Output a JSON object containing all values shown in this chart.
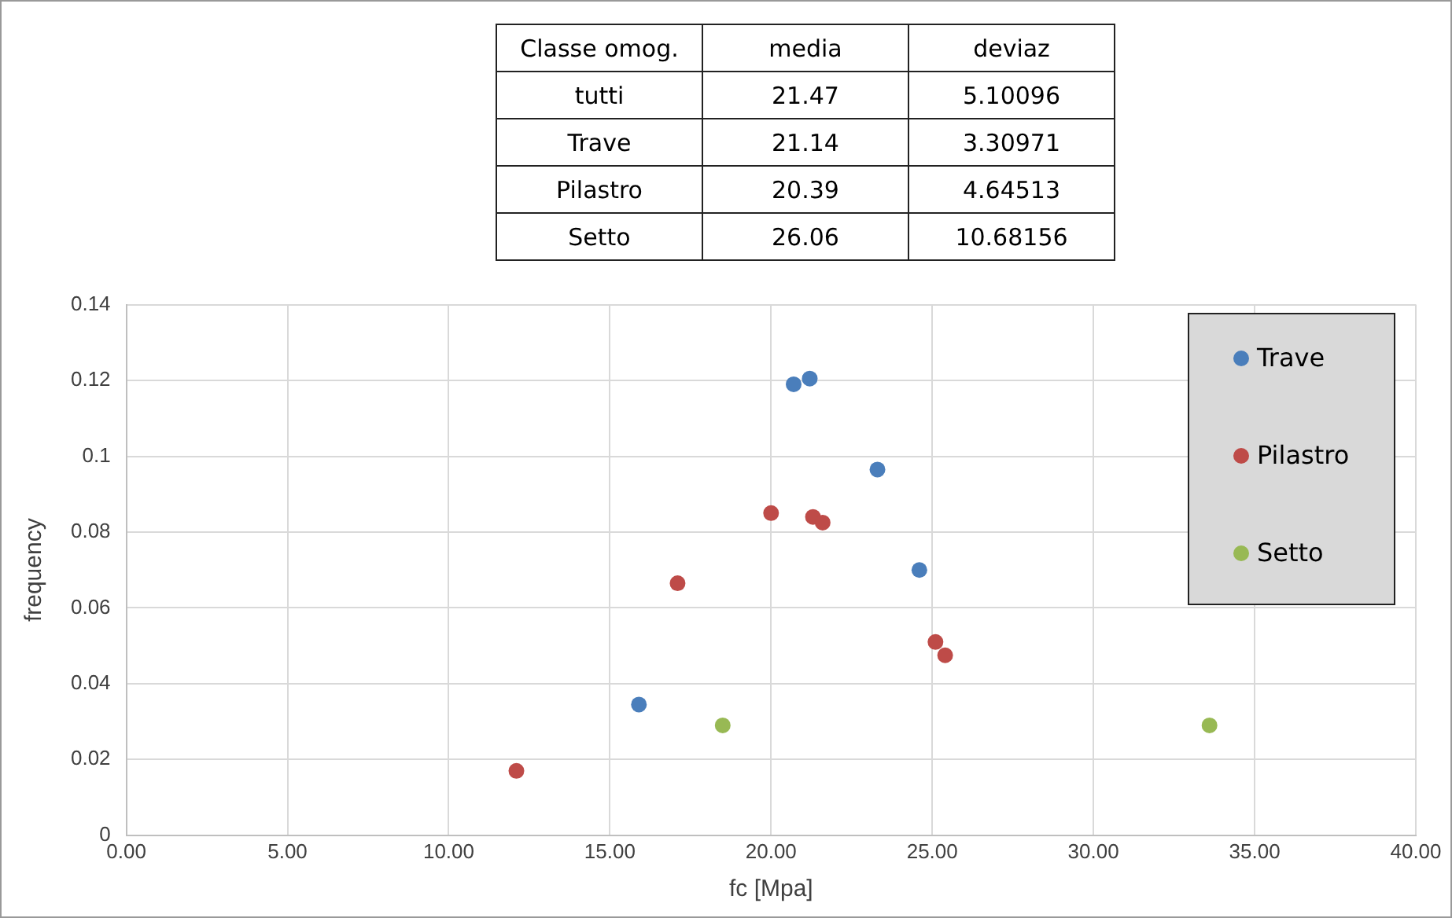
{
  "chart_data": [
    {
      "type": "other",
      "ylabel": "Classe omog.",
      "categories": [
        "media",
        "deviaz"
      ],
      "y_categories": [
        "tutti",
        "Trave",
        "Pilastro",
        "Setto"
      ],
      "annotations": [
        "21.47",
        "5.10096",
        "21.14",
        "3.30971",
        "20.39",
        "4.64513",
        "26.06",
        "10.68156"
      ]
    },
    {
      "type": "scatter",
      "xlabel": "fc [Mpa]",
      "ylabel": "frequency",
      "xlim": [
        0,
        40
      ],
      "ylim": [
        0,
        0.14
      ],
      "xticks": [
        {
          "value": 0,
          "label": "0.00"
        },
        {
          "value": 5,
          "label": "5.00"
        },
        {
          "value": 10,
          "label": "10.00"
        },
        {
          "value": 15,
          "label": "15.00"
        },
        {
          "value": 20,
          "label": "20.00"
        },
        {
          "value": 25,
          "label": "25.00"
        },
        {
          "value": 30,
          "label": "30.00"
        },
        {
          "value": 35,
          "label": "35.00"
        },
        {
          "value": 40,
          "label": "40.00"
        }
      ],
      "yticks": [
        0,
        0.02,
        0.04,
        0.06,
        0.08,
        0.1,
        0.12,
        0.14
      ],
      "grid": true,
      "legend": "top right",
      "marker": "circle",
      "series": [
        {
          "name": "Trave",
          "color": "#4a7ebb",
          "x": [
            15.9,
            20.7,
            21.2,
            23.3,
            24.6
          ],
          "values": [
            0.0345,
            0.119,
            0.1205,
            0.0965,
            0.07
          ]
        },
        {
          "name": "Pilastro",
          "color": "#be4b48",
          "x": [
            12.1,
            17.1,
            20.0,
            21.3,
            21.6,
            25.1,
            25.4
          ],
          "values": [
            0.017,
            0.0665,
            0.085,
            0.084,
            0.0825,
            0.051,
            0.0475
          ]
        },
        {
          "name": "Setto",
          "color": "#98b954",
          "x": [
            18.5,
            33.6
          ],
          "values": [
            0.029,
            0.029
          ]
        }
      ]
    }
  ]
}
